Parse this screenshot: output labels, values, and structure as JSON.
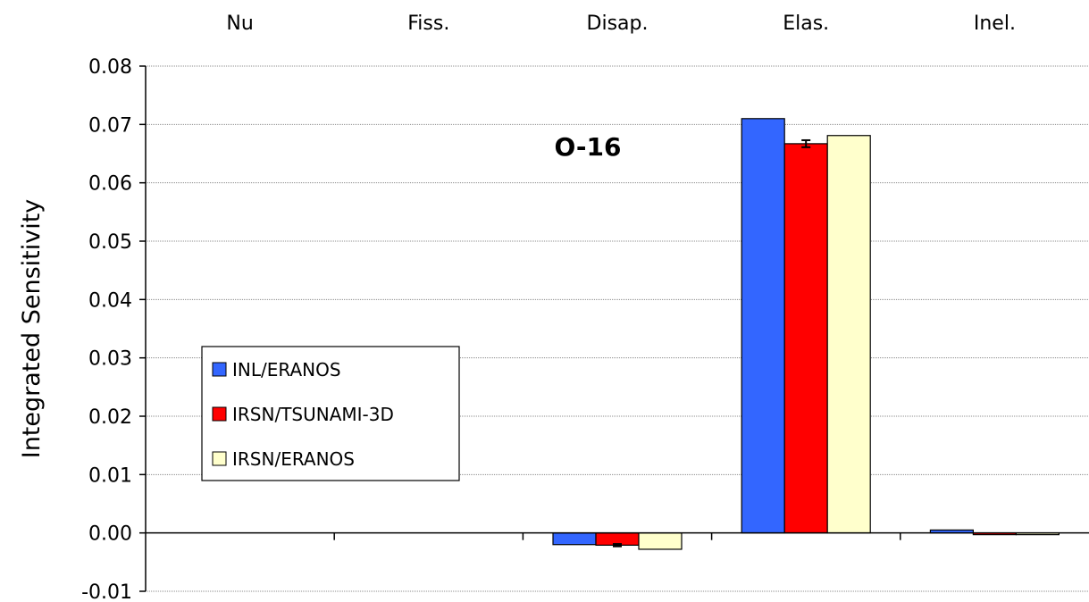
{
  "chart_data": {
    "type": "bar",
    "categories": [
      "Nu",
      "Fiss.",
      "Disap.",
      "Elas.",
      "Inel."
    ],
    "series": [
      {
        "name": "INL/ERANOS",
        "color": "#3366ff",
        "values": [
          0,
          0,
          -0.002,
          0.071,
          0.0005
        ],
        "errors": [
          null,
          null,
          null,
          null,
          null
        ]
      },
      {
        "name": "IRSN/TSUNAMI-3D",
        "color": "#ff0000",
        "values": [
          0,
          0,
          -0.0021,
          0.0667,
          -0.0003
        ],
        "errors": [
          null,
          null,
          0.0002,
          0.0006,
          null
        ]
      },
      {
        "name": "IRSN/ERANOS",
        "color": "#ffffcc",
        "values": [
          0,
          0,
          -0.0028,
          0.0681,
          -0.0003
        ],
        "errors": [
          null,
          null,
          null,
          null,
          null
        ]
      }
    ],
    "title": "",
    "annotation": "O-16",
    "xlabel": "",
    "ylabel": "Integrated Sensitivity",
    "ylim": [
      -0.01,
      0.08
    ],
    "yticks": [
      "-0.01",
      "0.00",
      "0.01",
      "0.02",
      "0.03",
      "0.04",
      "0.05",
      "0.06",
      "0.07",
      "0.08"
    ],
    "ytick_values": [
      -0.01,
      0.0,
      0.01,
      0.02,
      0.03,
      0.04,
      0.05,
      0.06,
      0.07,
      0.08
    ],
    "category_labels_position": "top",
    "grid": true,
    "legend": "left-middle"
  }
}
